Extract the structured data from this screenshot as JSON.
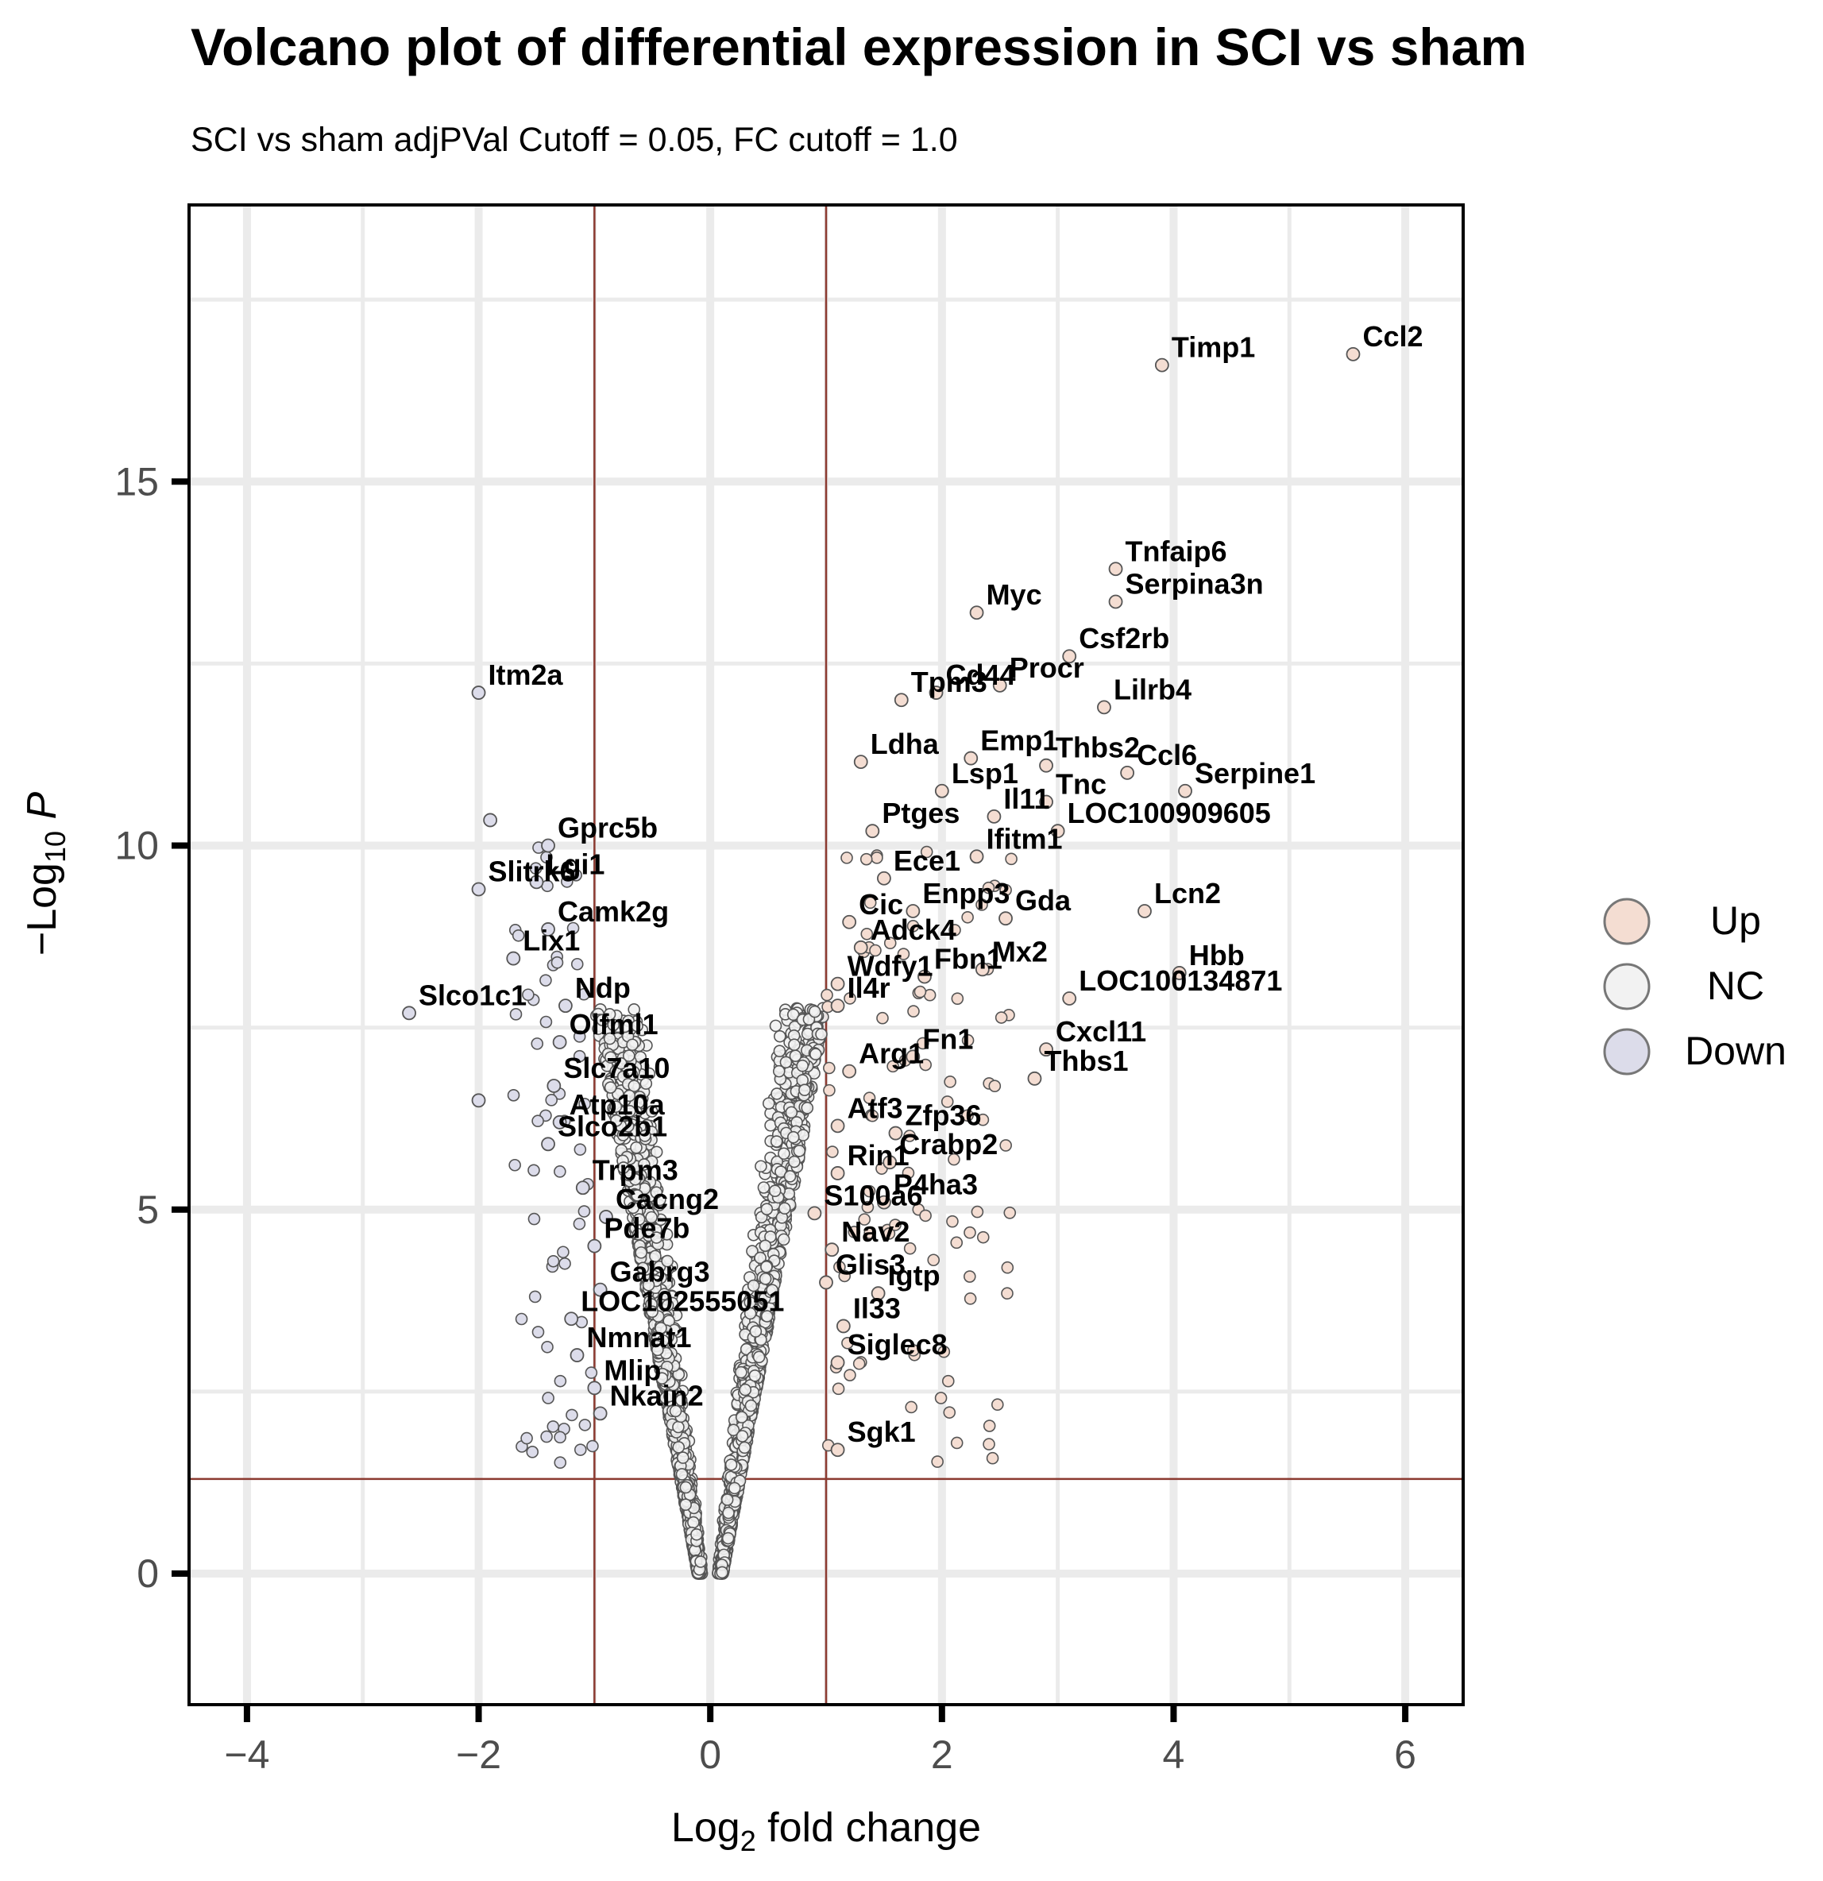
{
  "chart_data": {
    "type": "scatter",
    "title": "Volcano plot of differential expression in SCI vs sham",
    "subtitle": "SCI vs sham adjPVal Cutoff = 0.05, FC cutoff = 1.0",
    "xlabel_parts": [
      "Log",
      "2",
      " fold change"
    ],
    "ylabel_parts": [
      "−Log",
      "10",
      " ",
      "P"
    ],
    "xlim": [
      -4.5,
      6.5
    ],
    "ylim": [
      -1.8,
      18.8
    ],
    "x_ticks": [
      -4,
      -2,
      0,
      2,
      4,
      6
    ],
    "x_tick_labels": [
      "−4",
      "−2",
      "0",
      "2",
      "4",
      "6"
    ],
    "y_ticks": [
      0,
      5,
      10,
      15
    ],
    "y_tick_labels": [
      "0",
      "5",
      "10",
      "15"
    ],
    "grid": true,
    "cutoff_lines": {
      "fc": [
        -1,
        1
      ],
      "neg_log10_p": 1.3
    },
    "legend_position": "right",
    "legend": [
      {
        "name": "Up",
        "color": "#f4ddd2"
      },
      {
        "name": "NC",
        "color": "#f2f2f2"
      },
      {
        "name": "Down",
        "color": "#dcdcea"
      }
    ],
    "colors": {
      "up": "#f4ddd2",
      "nc": "#f2f2f2",
      "down": "#dcdcea",
      "point_edge": "#555555",
      "cutoff_line": "#8b3a30",
      "grid": "#ebebeb",
      "axis": "#000000"
    },
    "points": [
      {
        "x": 5.55,
        "y": 16.75,
        "label": "Ccl2",
        "group": "up"
      },
      {
        "x": 3.9,
        "y": 16.6,
        "label": "Timp1",
        "group": "up"
      },
      {
        "x": 3.5,
        "y": 13.8,
        "label": "Tnfaip6",
        "group": "up"
      },
      {
        "x": 2.3,
        "y": 13.2,
        "label": "Myc",
        "group": "up"
      },
      {
        "x": 3.5,
        "y": 13.35,
        "label": "Serpina3n",
        "group": "up"
      },
      {
        "x": 3.1,
        "y": 12.6,
        "label": "Csf2rb",
        "group": "up"
      },
      {
        "x": 2.5,
        "y": 12.2,
        "label": "Procr",
        "group": "up"
      },
      {
        "x": 1.65,
        "y": 12.0,
        "label": "Tpm3",
        "group": "up"
      },
      {
        "x": 1.95,
        "y": 12.1,
        "label": "Cd44",
        "group": "up"
      },
      {
        "x": 3.4,
        "y": 11.9,
        "label": "Lilrb4",
        "group": "up"
      },
      {
        "x": -2.0,
        "y": 12.1,
        "label": "Itm2a",
        "group": "down"
      },
      {
        "x": 2.25,
        "y": 11.2,
        "label": "Emp1",
        "group": "up"
      },
      {
        "x": 1.3,
        "y": 11.15,
        "label": "Ldha",
        "group": "up"
      },
      {
        "x": 2.9,
        "y": 11.1,
        "label": "Thbs2",
        "group": "up"
      },
      {
        "x": 3.6,
        "y": 11.0,
        "label": "Ccl6",
        "group": "up"
      },
      {
        "x": 2.0,
        "y": 10.75,
        "label": "Lsp1",
        "group": "up"
      },
      {
        "x": 2.9,
        "y": 10.6,
        "label": "Tnc",
        "group": "up"
      },
      {
        "x": 4.1,
        "y": 10.75,
        "label": "Serpine1",
        "group": "up"
      },
      {
        "x": 2.45,
        "y": 10.4,
        "label": "Il11",
        "group": "up"
      },
      {
        "x": 3.0,
        "y": 10.2,
        "label": "LOC100909605",
        "group": "up"
      },
      {
        "x": 1.4,
        "y": 10.2,
        "label": "Ptges",
        "group": "up"
      },
      {
        "x": -1.4,
        "y": 10.0,
        "label": "Gprc5b",
        "group": "down"
      },
      {
        "x": -1.9,
        "y": 10.35,
        "label": "",
        "group": "down"
      },
      {
        "x": 2.3,
        "y": 9.85,
        "label": "Ifitm1",
        "group": "up"
      },
      {
        "x": 1.5,
        "y": 9.55,
        "label": "Ece1",
        "group": "up"
      },
      {
        "x": -1.5,
        "y": 9.5,
        "label": "Lgi1",
        "group": "down"
      },
      {
        "x": 3.75,
        "y": 9.1,
        "label": "Lcn2",
        "group": "up"
      },
      {
        "x": -2.0,
        "y": 9.4,
        "label": "Slitrk6",
        "group": "down"
      },
      {
        "x": 1.75,
        "y": 9.1,
        "label": "Enpp3",
        "group": "up"
      },
      {
        "x": 2.55,
        "y": 9.0,
        "label": "Gda",
        "group": "up"
      },
      {
        "x": 1.2,
        "y": 8.95,
        "label": "Cic",
        "group": "up"
      },
      {
        "x": -1.4,
        "y": 8.85,
        "label": "Camk2g",
        "group": "down"
      },
      {
        "x": 1.3,
        "y": 8.6,
        "label": "Adck4",
        "group": "up"
      },
      {
        "x": -1.7,
        "y": 8.45,
        "label": "Lix1",
        "group": "down"
      },
      {
        "x": 4.05,
        "y": 8.25,
        "label": "Hbb",
        "group": "up"
      },
      {
        "x": 2.35,
        "y": 8.3,
        "label": "Mx2",
        "group": "up"
      },
      {
        "x": 1.1,
        "y": 8.1,
        "label": "Wdfy1",
        "group": "up"
      },
      {
        "x": 1.85,
        "y": 8.2,
        "label": "Fbn1",
        "group": "up"
      },
      {
        "x": -2.6,
        "y": 7.7,
        "label": "Slco1c1",
        "group": "down"
      },
      {
        "x": -1.25,
        "y": 7.8,
        "label": "Ndp",
        "group": "down"
      },
      {
        "x": 1.1,
        "y": 7.8,
        "label": "Il4r",
        "group": "up"
      },
      {
        "x": 3.1,
        "y": 7.9,
        "label": "LOC100134871",
        "group": "up"
      },
      {
        "x": -1.3,
        "y": 7.3,
        "label": "Olfml1",
        "group": "down"
      },
      {
        "x": 1.75,
        "y": 7.1,
        "label": "Fn1",
        "group": "up"
      },
      {
        "x": 2.9,
        "y": 7.2,
        "label": "Cxcl11",
        "group": "up"
      },
      {
        "x": 2.8,
        "y": 6.8,
        "label": "Thbs1",
        "group": "up"
      },
      {
        "x": 1.2,
        "y": 6.9,
        "label": "Arg1",
        "group": "up"
      },
      {
        "x": -1.35,
        "y": 6.7,
        "label": "Slc7a10",
        "group": "down"
      },
      {
        "x": -2.0,
        "y": 6.5,
        "label": "",
        "group": "down"
      },
      {
        "x": -1.3,
        "y": 6.2,
        "label": "Atp10a",
        "group": "down"
      },
      {
        "x": -1.4,
        "y": 5.9,
        "label": "Slco2b1",
        "group": "down"
      },
      {
        "x": 1.1,
        "y": 6.15,
        "label": "Atf3",
        "group": "up"
      },
      {
        "x": 1.6,
        "y": 6.05,
        "label": "Zfp36",
        "group": "up"
      },
      {
        "x": 1.55,
        "y": 5.65,
        "label": "Crabp2",
        "group": "up"
      },
      {
        "x": 1.1,
        "y": 5.5,
        "label": "Rin1",
        "group": "up"
      },
      {
        "x": -1.1,
        "y": 5.3,
        "label": "Trpm3",
        "group": "down"
      },
      {
        "x": 1.5,
        "y": 5.1,
        "label": "P4ha3",
        "group": "up"
      },
      {
        "x": -0.9,
        "y": 4.9,
        "label": "Cacng2",
        "group": "down"
      },
      {
        "x": 0.9,
        "y": 4.95,
        "label": "S100a6",
        "group": "up"
      },
      {
        "x": -1.0,
        "y": 4.5,
        "label": "Pde7b",
        "group": "down"
      },
      {
        "x": 1.05,
        "y": 4.45,
        "label": "Nav2",
        "group": "up"
      },
      {
        "x": -0.95,
        "y": 3.9,
        "label": "Gabrg3",
        "group": "down"
      },
      {
        "x": 1.0,
        "y": 4.0,
        "label": "Glis3",
        "group": "up"
      },
      {
        "x": 1.45,
        "y": 3.85,
        "label": "Igtp",
        "group": "up"
      },
      {
        "x": -1.2,
        "y": 3.5,
        "label": "LOC102555051",
        "group": "down"
      },
      {
        "x": 1.15,
        "y": 3.4,
        "label": "Il33",
        "group": "up"
      },
      {
        "x": -1.15,
        "y": 3.0,
        "label": "Nmnat1",
        "group": "down"
      },
      {
        "x": 1.1,
        "y": 2.9,
        "label": "Siglec8",
        "group": "up"
      },
      {
        "x": -1.0,
        "y": 2.55,
        "label": "Mlip",
        "group": "down"
      },
      {
        "x": -0.95,
        "y": 2.2,
        "label": "Nkain2",
        "group": "down"
      },
      {
        "x": 1.1,
        "y": 1.7,
        "label": "Sgk1",
        "group": "up"
      }
    ],
    "background_points_note": "Thousands of unlabeled NC genes form a V-shaped cloud from (0,0) up to roughly |log2FC| 1.0 at -log10P 8; rendered procedurally."
  }
}
